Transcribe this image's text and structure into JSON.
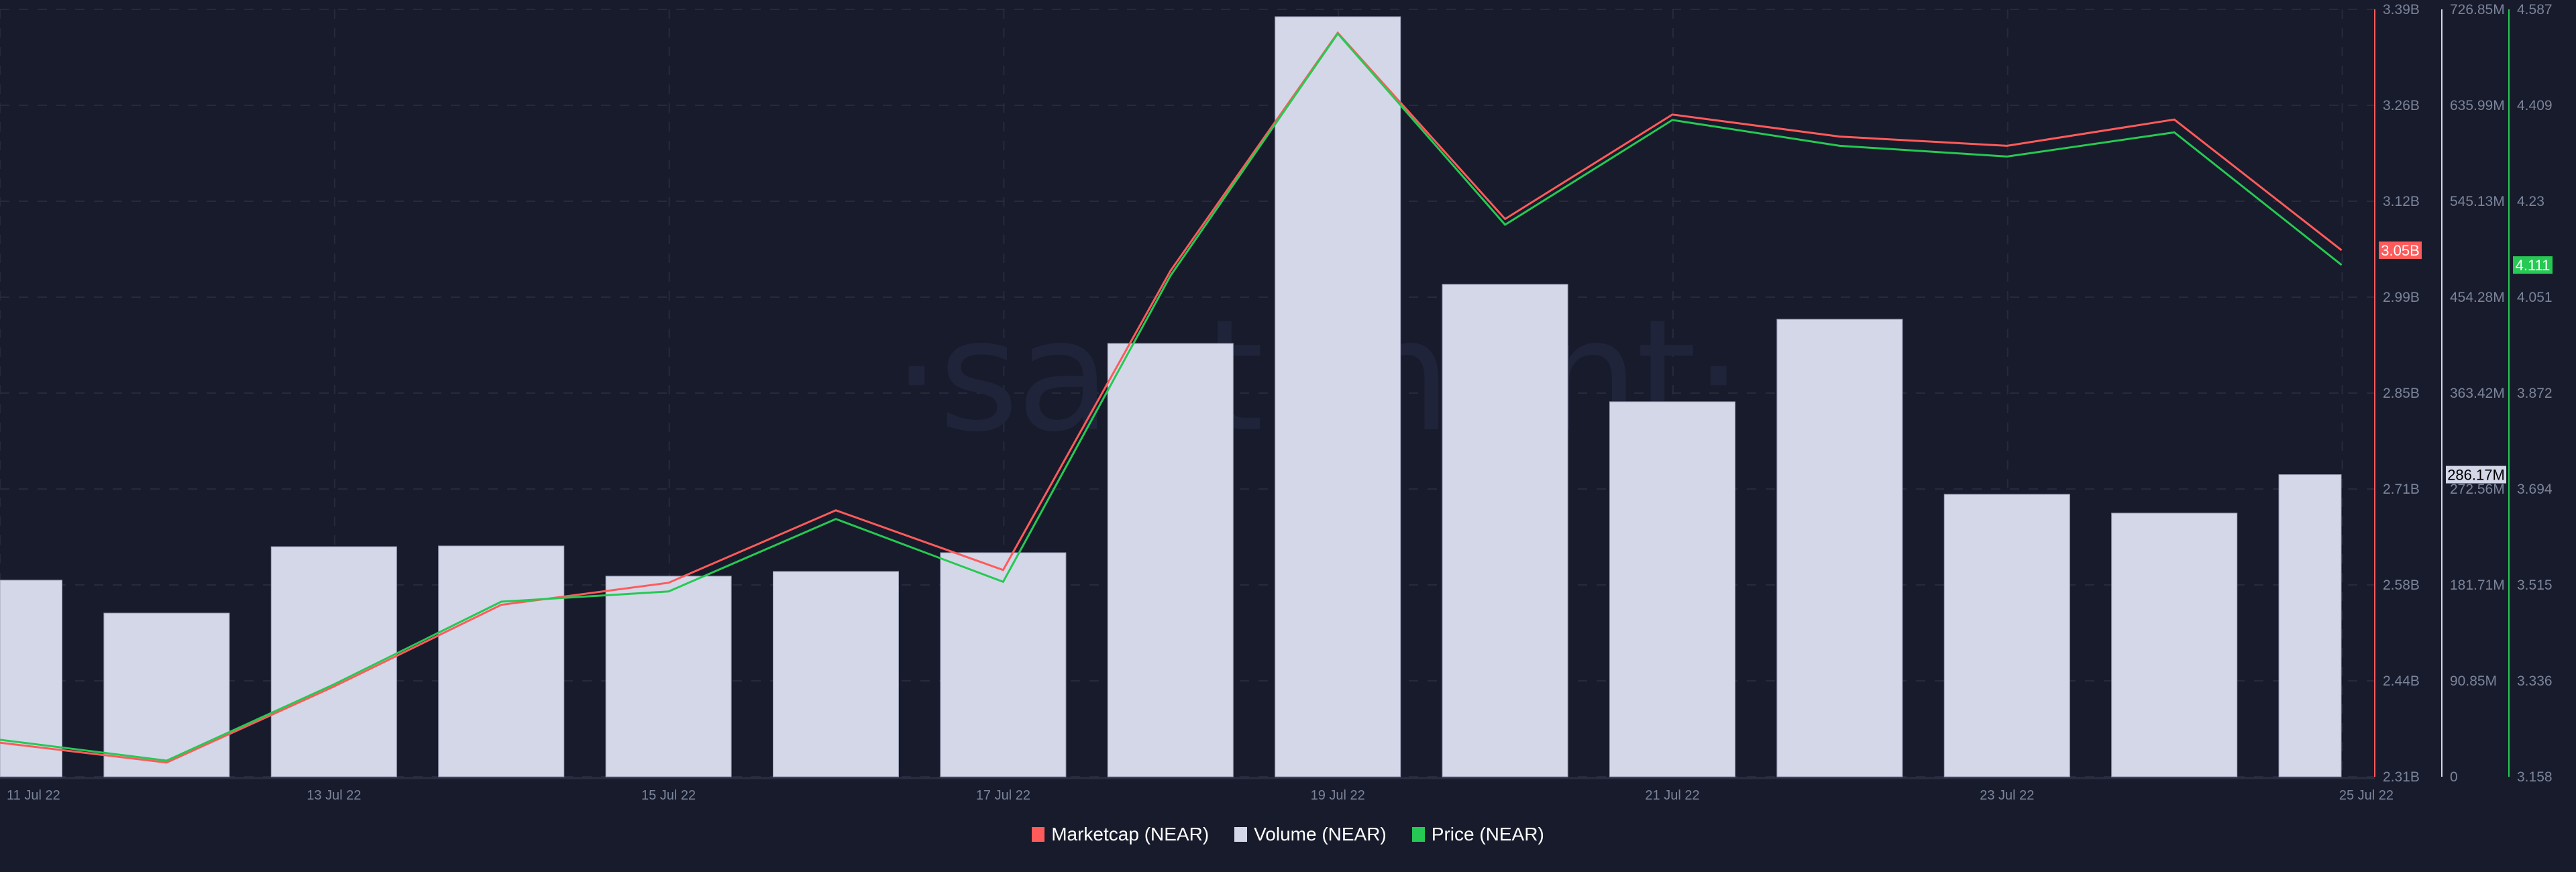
{
  "chart_data": {
    "type": "bar+line",
    "title": "",
    "watermark": "·santiment·",
    "categories": [
      "11 Jul 22",
      "12 Jul 22",
      "13 Jul 22",
      "14 Jul 22",
      "15 Jul 22",
      "16 Jul 22",
      "17 Jul 22",
      "18 Jul 22",
      "19 Jul 22",
      "20 Jul 22",
      "21 Jul 22",
      "22 Jul 22",
      "23 Jul 22",
      "24 Jul 22",
      "25 Jul 22"
    ],
    "x_tick_labels": [
      "11 Jul 22",
      "13 Jul 22",
      "15 Jul 22",
      "17 Jul 22",
      "19 Jul 22",
      "21 Jul 22",
      "23 Jul 22",
      "25 Jul 22"
    ],
    "series": [
      {
        "name": "Marketcap (NEAR)",
        "type": "line",
        "color": "#ff5b5b",
        "unit": "B",
        "values": [
          2.358,
          2.33,
          2.437,
          2.552,
          2.583,
          2.685,
          2.601,
          3.022,
          3.357,
          3.095,
          3.242,
          3.211,
          3.198,
          3.235,
          3.051
        ],
        "axis": {
          "min": 2.31,
          "max": 3.39,
          "ticks": [
            "3.39B",
            "3.26B",
            "3.12B",
            "2.99B",
            "2.85B",
            "2.71B",
            "2.58B",
            "2.44B",
            "2.31B"
          ]
        },
        "last_value_label": "3.05B"
      },
      {
        "name": "Volume (NEAR)",
        "type": "bar",
        "color": "#d4d7e8",
        "unit": "M",
        "values": [
          186.2,
          155.0,
          217.9,
          218.6,
          190.0,
          194.4,
          212.2,
          410.4,
          719.9,
          466.4,
          355.2,
          433.3,
          267.5,
          249.7,
          286.17
        ],
        "axis": {
          "min": 0,
          "max": 726.85,
          "ticks": [
            "726.85M",
            "635.99M",
            "545.13M",
            "454.28M",
            "363.42M",
            "272.56M",
            "181.71M",
            "90.85M",
            "0"
          ]
        },
        "last_value_label": "286.17M"
      },
      {
        "name": "Price (NEAR)",
        "type": "line",
        "color": "#26c953",
        "unit": "USD",
        "values": [
          3.227,
          3.188,
          3.33,
          3.484,
          3.503,
          3.638,
          3.521,
          4.091,
          4.542,
          4.186,
          4.381,
          4.333,
          4.313,
          4.358,
          4.111
        ],
        "axis": {
          "min": 3.158,
          "max": 4.587,
          "ticks": [
            "4.587",
            "4.409",
            "4.23",
            "4.051",
            "3.872",
            "3.694",
            "3.515",
            "3.336",
            "3.158"
          ]
        },
        "last_value_label": "4.111"
      }
    ],
    "grid": true,
    "legend_position": "bottom-center"
  },
  "legend": {
    "items": [
      {
        "label": "Marketcap (NEAR)",
        "color": "#ff5b5b"
      },
      {
        "label": "Volume (NEAR)",
        "color": "#d4d7e8"
      },
      {
        "label": "Price (NEAR)",
        "color": "#26c953"
      }
    ]
  }
}
